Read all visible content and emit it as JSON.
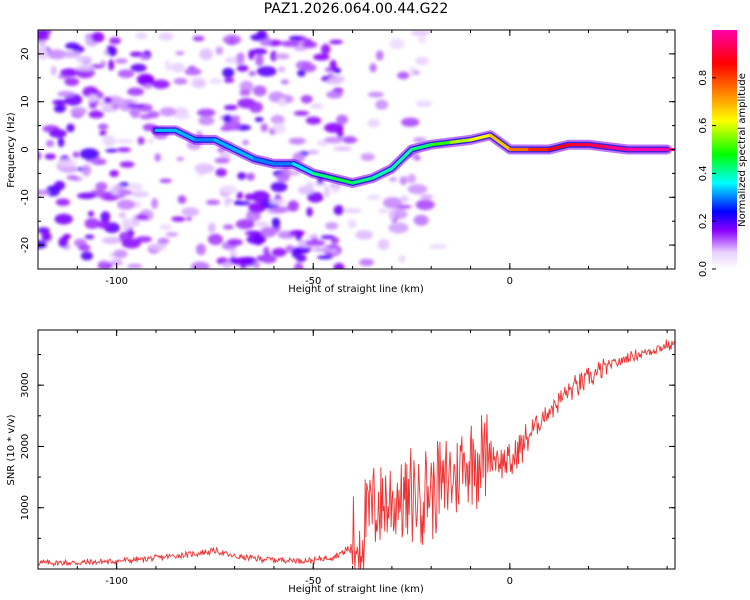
{
  "chart_data": [
    {
      "type": "heatmap",
      "title": "PAZ1.2026.064.00.44.G22",
      "xlabel": "Height of straight line (km)",
      "ylabel": "Frequency (Hz)",
      "xlim": [
        -120,
        42
      ],
      "ylim": [
        -25,
        25
      ],
      "xticks": [
        -100,
        -50,
        0
      ],
      "xtick_labels": [
        "-100",
        "-50",
        "0"
      ],
      "yticks": [
        20,
        10,
        0,
        -10,
        -20
      ],
      "ytick_labels": [
        "20",
        "10",
        "0",
        "-10",
        "-20"
      ],
      "colorbar": {
        "label": "Normalized spectral amplitude",
        "range": [
          0,
          1
        ],
        "ticks": [
          0.0,
          0.2,
          0.4,
          0.6,
          0.8
        ],
        "tick_labels": [
          "0.0",
          "0.2",
          "0.4",
          "0.6",
          "0.8"
        ],
        "colormap": [
          "#ffffff",
          "#d9b3ff",
          "#8b00ff",
          "#0000ff",
          "#00ffff",
          "#00ff00",
          "#ffff00",
          "#ff7f00",
          "#ff0000",
          "#ff00aa"
        ]
      },
      "ridge": {
        "x": [
          -90,
          -85,
          -80,
          -75,
          -70,
          -65,
          -60,
          -55,
          -50,
          -45,
          -40,
          -35,
          -30,
          -25,
          -20,
          -15,
          -10,
          -5,
          0,
          5,
          10,
          15,
          20,
          25,
          30,
          35,
          40
        ],
        "freq_hz": [
          4,
          4,
          2,
          2,
          0,
          -2,
          -3,
          -3,
          -5,
          -6,
          -7,
          -6,
          -4,
          0,
          1,
          1.5,
          2,
          3,
          0,
          0,
          0,
          1,
          1,
          0.5,
          0,
          0,
          0
        ],
        "amplitude": [
          0.3,
          0.35,
          0.3,
          0.3,
          0.35,
          0.3,
          0.3,
          0.3,
          0.4,
          0.45,
          0.45,
          0.4,
          0.4,
          0.4,
          0.45,
          0.55,
          0.6,
          0.65,
          0.7,
          0.8,
          0.85,
          0.9,
          0.9,
          0.95,
          1.0,
          1.0,
          1.0
        ]
      }
    },
    {
      "type": "line",
      "title": "",
      "xlabel": "Height of straight line (km)",
      "ylabel": "SNR (10 * v/v)",
      "xlim": [
        -120,
        42
      ],
      "ylim": [
        0,
        3900
      ],
      "xticks": [
        -100,
        -50,
        0
      ],
      "xtick_labels": [
        "-100",
        "-50",
        "0"
      ],
      "yticks": [
        1000,
        2000,
        3000
      ],
      "ytick_labels": [
        "1000",
        "2000",
        "3000"
      ],
      "color": "#ee3333",
      "series": [
        {
          "name": "SNR",
          "x": [
            -120,
            -110,
            -100,
            -90,
            -80,
            -75,
            -70,
            -60,
            -50,
            -45,
            -40,
            -38,
            -35,
            -30,
            -25,
            -20,
            -15,
            -10,
            -5,
            0,
            5,
            10,
            15,
            20,
            25,
            30,
            35,
            40
          ],
          "values": [
            100,
            100,
            130,
            180,
            250,
            300,
            200,
            150,
            140,
            200,
            350,
            500,
            1000,
            1100,
            1200,
            1300,
            1500,
            1800,
            1900,
            1700,
            2200,
            2600,
            2900,
            3100,
            3300,
            3450,
            3550,
            3650
          ]
        }
      ]
    }
  ]
}
